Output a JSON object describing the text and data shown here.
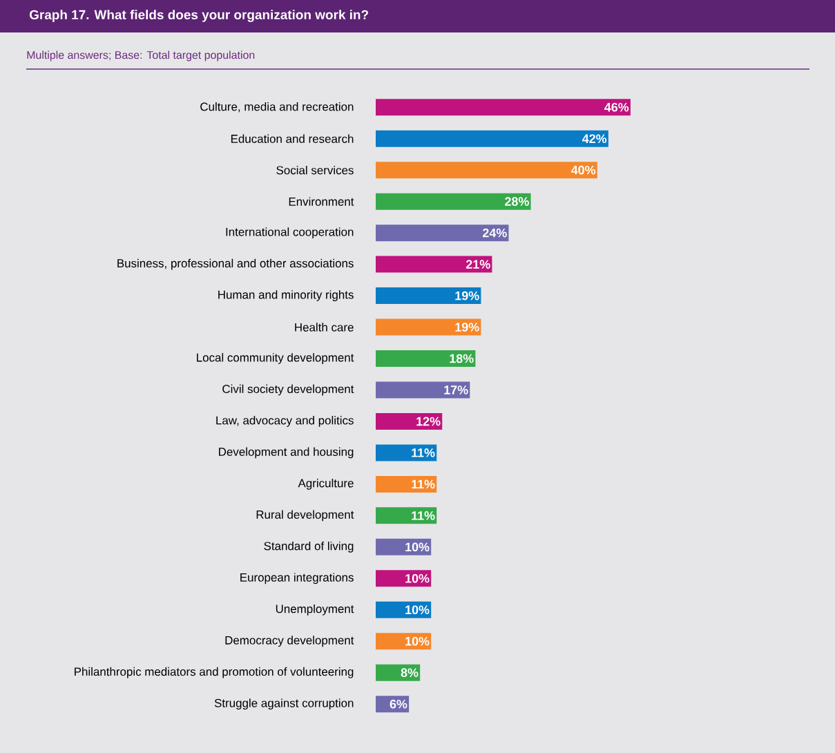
{
  "chart_data": {
    "type": "bar",
    "orientation": "horizontal",
    "title": "Graph 17. What fields does your organization work in?",
    "subtitle": "Multiple answers; Base: Total target population",
    "categories": [
      "Culture, media and recreation",
      "Education and research",
      "Social services",
      "Environment",
      "International cooperation",
      "Business, professional and other associations",
      "Human and minority rights",
      "Health care",
      "Local community development",
      "Civil society development",
      "Law, advocacy and politics",
      "Development and housing",
      "Agriculture",
      "Rural development",
      "Standard of living",
      "European integrations",
      "Unemployment",
      "Democracy development",
      "Philanthropic mediators and promotion of volunteering",
      "Struggle against corruption"
    ],
    "values": [
      46,
      42,
      40,
      28,
      24,
      21,
      19,
      19,
      18,
      17,
      12,
      11,
      11,
      11,
      10,
      10,
      10,
      10,
      8,
      6
    ],
    "value_labels": [
      "46%",
      "42%",
      "40%",
      "28%",
      "24%",
      "21%",
      "19%",
      "19%",
      "18%",
      "17%",
      "12%",
      "11%",
      "11%",
      "11%",
      "10%",
      "10%",
      "10%",
      "10%",
      "8%",
      "6%"
    ],
    "colors": [
      "#c0137e",
      "#0a7cc6",
      "#f5872a",
      "#36a94a",
      "#6f6aae",
      "#c0137e",
      "#0a7cc6",
      "#f5872a",
      "#36a94a",
      "#6f6aae",
      "#c0137e",
      "#0a7cc6",
      "#f5872a",
      "#36a94a",
      "#6f6aae",
      "#c0137e",
      "#0a7cc6",
      "#f5872a",
      "#36a94a",
      "#6f6aae"
    ]
  }
}
